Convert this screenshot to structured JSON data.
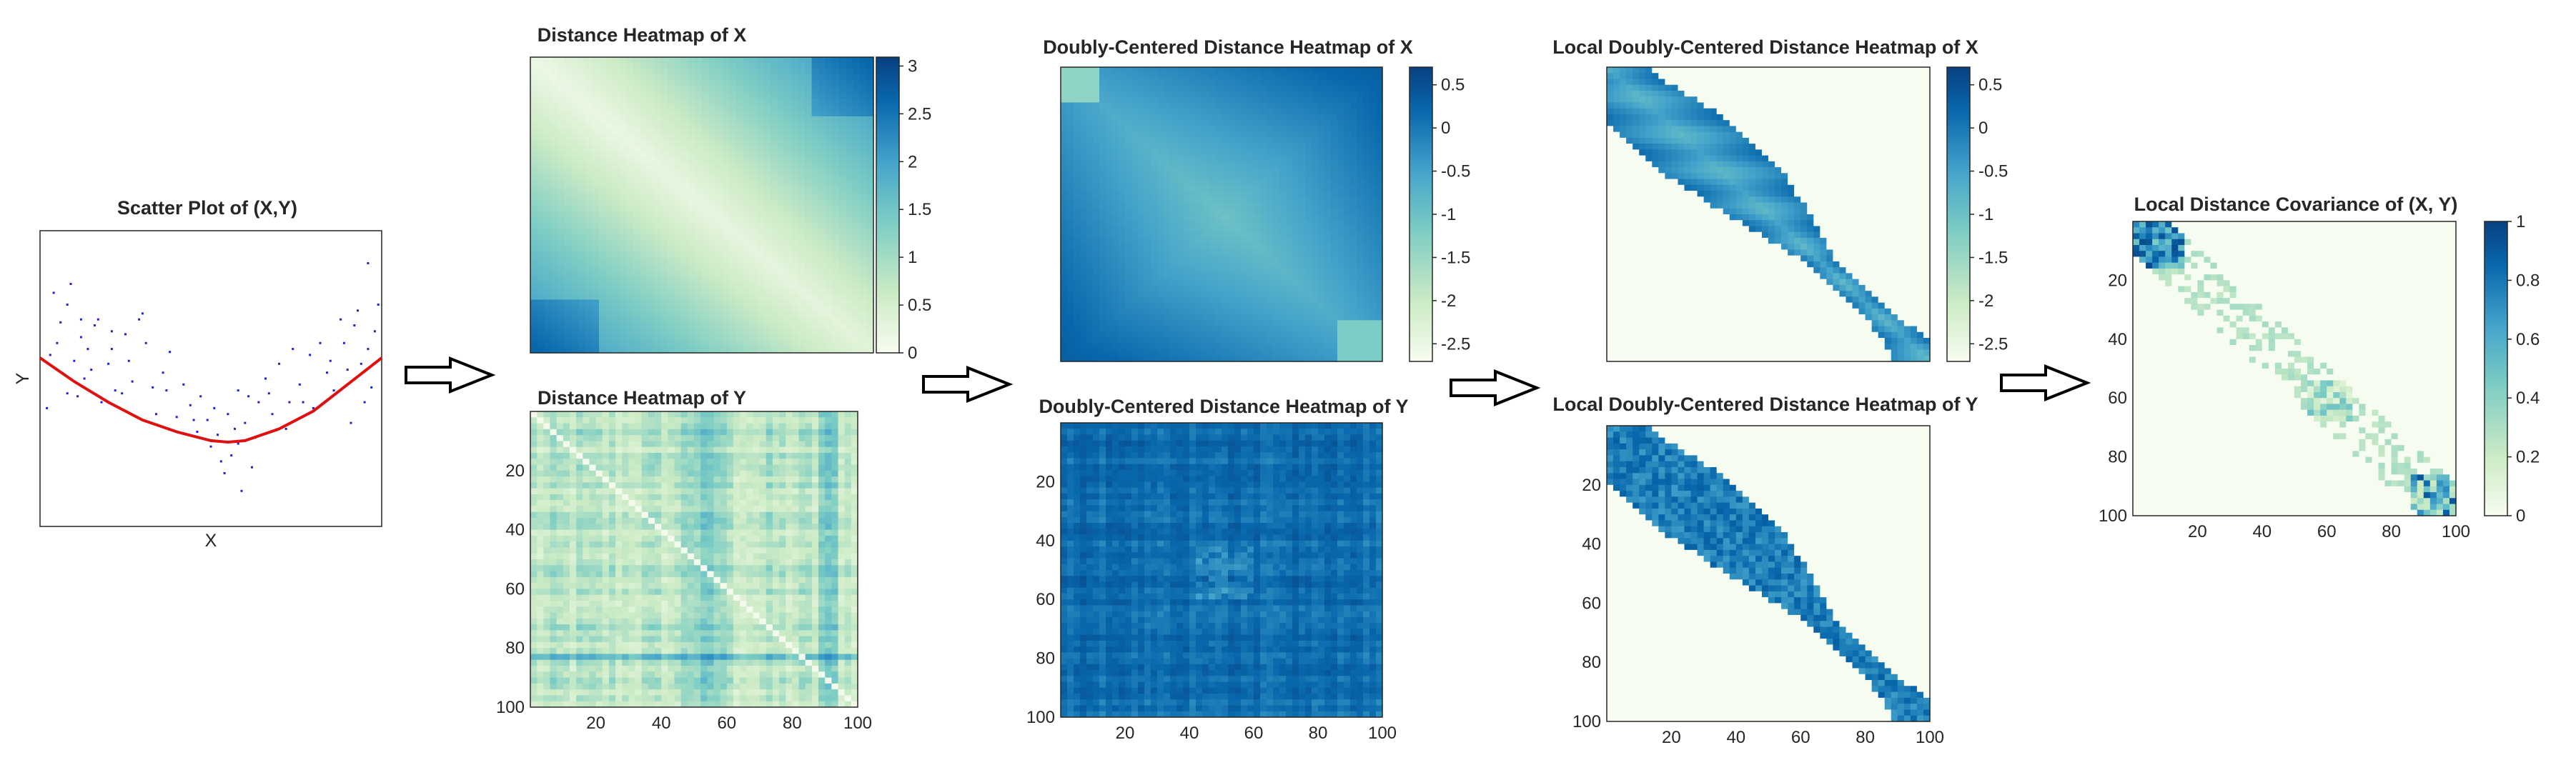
{
  "panels": {
    "scatter": {
      "title": "Scatter Plot of (X,Y)",
      "xlabel": "X",
      "ylabel": "Y"
    },
    "dist_x": {
      "title": "Distance Heatmap of X"
    },
    "dist_y": {
      "title": "Distance Heatmap of Y"
    },
    "dc_x": {
      "title": "Doubly-Centered Distance Heatmap of X"
    },
    "dc_y": {
      "title": "Doubly-Centered Distance Heatmap of Y"
    },
    "ldc_x": {
      "title": "Local Doubly-Centered Distance Heatmap of X"
    },
    "ldc_y": {
      "title": "Local Doubly-Centered Distance Heatmap of Y"
    },
    "ldcov": {
      "title": "Local Distance Covariance of (X, Y)"
    }
  },
  "ticks": {
    "matrix": [
      "20",
      "40",
      "60",
      "80",
      "100"
    ],
    "cb_dist_x": [
      "0",
      "0.5",
      "1",
      "1.5",
      "2",
      "2.5",
      "3"
    ],
    "cb_dc_x": [
      "-2.5",
      "-2",
      "-1.5",
      "-1",
      "-0.5",
      "0",
      "0.5"
    ],
    "cb_ldc_x": [
      "-2.5",
      "-2",
      "-1.5",
      "-1",
      "-0.5",
      "0",
      "0.5"
    ],
    "cb_ldcov": [
      "0",
      "0.2",
      "0.4",
      "0.6",
      "0.8",
      "1"
    ]
  },
  "colors": {
    "scatter_points": "#2222cc",
    "fit_curve": "#e01010",
    "colormap": [
      "#f7fcf0",
      "#ccebc5",
      "#7bccc4",
      "#43a2ca",
      "#0868ac",
      "#084081"
    ]
  },
  "chart_data": [
    {
      "type": "scatter",
      "title": "Scatter Plot of (X,Y)",
      "xlabel": "X",
      "ylabel": "Y",
      "series": [
        {
          "points": [
            [
              0.02,
              0.4
            ],
            [
              0.03,
              0.58
            ],
            [
              0.04,
              0.79
            ],
            [
              0.05,
              0.62
            ],
            [
              0.06,
              0.69
            ],
            [
              0.08,
              0.75
            ],
            [
              0.09,
              0.82
            ],
            [
              0.1,
              0.56
            ],
            [
              0.11,
              0.44
            ],
            [
              0.12,
              0.7
            ],
            [
              0.13,
              0.5
            ],
            [
              0.14,
              0.6
            ],
            [
              0.15,
              0.53
            ],
            [
              0.16,
              0.68
            ],
            [
              0.17,
              0.7
            ],
            [
              0.18,
              0.42
            ],
            [
              0.2,
              0.55
            ],
            [
              0.21,
              0.6
            ],
            [
              0.22,
              0.46
            ],
            [
              0.24,
              0.45
            ],
            [
              0.25,
              0.65
            ],
            [
              0.27,
              0.49
            ],
            [
              0.29,
              0.7
            ],
            [
              0.3,
              0.72
            ],
            [
              0.31,
              0.62
            ],
            [
              0.33,
              0.47
            ],
            [
              0.34,
              0.38
            ],
            [
              0.36,
              0.52
            ],
            [
              0.38,
              0.59
            ],
            [
              0.4,
              0.37
            ],
            [
              0.42,
              0.48
            ],
            [
              0.44,
              0.41
            ],
            [
              0.46,
              0.32
            ],
            [
              0.47,
              0.44
            ],
            [
              0.49,
              0.36
            ],
            [
              0.5,
              0.27
            ],
            [
              0.51,
              0.4
            ],
            [
              0.52,
              0.31
            ],
            [
              0.53,
              0.22
            ],
            [
              0.54,
              0.18
            ],
            [
              0.55,
              0.38
            ],
            [
              0.56,
              0.24
            ],
            [
              0.57,
              0.33
            ],
            [
              0.58,
              0.28
            ],
            [
              0.59,
              0.12
            ],
            [
              0.6,
              0.35
            ],
            [
              0.61,
              0.44
            ],
            [
              0.62,
              0.2
            ],
            [
              0.63,
              0.3
            ],
            [
              0.64,
              0.42
            ],
            [
              0.66,
              0.5
            ],
            [
              0.68,
              0.38
            ],
            [
              0.7,
              0.55
            ],
            [
              0.72,
              0.33
            ],
            [
              0.74,
              0.6
            ],
            [
              0.76,
              0.48
            ],
            [
              0.77,
              0.42
            ],
            [
              0.79,
              0.58
            ],
            [
              0.8,
              0.4
            ],
            [
              0.82,
              0.62
            ],
            [
              0.84,
              0.52
            ],
            [
              0.86,
              0.46
            ],
            [
              0.88,
              0.7
            ],
            [
              0.89,
              0.62
            ],
            [
              0.9,
              0.53
            ],
            [
              0.91,
              0.35
            ],
            [
              0.92,
              0.68
            ],
            [
              0.93,
              0.73
            ],
            [
              0.94,
              0.55
            ],
            [
              0.95,
              0.42
            ],
            [
              0.96,
              0.6
            ],
            [
              0.97,
              0.47
            ],
            [
              0.98,
              0.66
            ],
            [
              0.96,
              0.89
            ],
            [
              0.99,
              0.75
            ],
            [
              0.08,
              0.45
            ],
            [
              0.12,
              0.64
            ],
            [
              0.26,
              0.56
            ],
            [
              0.45,
              0.36
            ],
            [
              0.67,
              0.45
            ],
            [
              0.85,
              0.56
            ],
            [
              0.37,
              0.46
            ],
            [
              0.73,
              0.42
            ],
            [
              0.58,
              0.46
            ],
            [
              0.21,
              0.66
            ]
          ]
        }
      ],
      "fit_curve": [
        [
          0.0,
          0.57
        ],
        [
          0.1,
          0.49
        ],
        [
          0.2,
          0.42
        ],
        [
          0.3,
          0.36
        ],
        [
          0.4,
          0.32
        ],
        [
          0.5,
          0.29
        ],
        [
          0.55,
          0.285
        ],
        [
          0.6,
          0.29
        ],
        [
          0.7,
          0.33
        ],
        [
          0.8,
          0.39
        ],
        [
          0.9,
          0.48
        ],
        [
          1.0,
          0.57
        ]
      ]
    },
    {
      "type": "heatmap",
      "title": "Distance Heatmap of X",
      "rows": 100,
      "cols": 100,
      "clim": [
        0,
        3.1
      ]
    },
    {
      "type": "heatmap",
      "title": "Distance Heatmap of Y",
      "rows": 100,
      "cols": 100
    },
    {
      "type": "heatmap",
      "title": "Doubly-Centered Distance Heatmap of X",
      "rows": 100,
      "cols": 100,
      "clim": [
        -2.7,
        0.7
      ]
    },
    {
      "type": "heatmap",
      "title": "Doubly-Centered Distance Heatmap of Y",
      "rows": 100,
      "cols": 100
    },
    {
      "type": "heatmap",
      "title": "Local Doubly-Centered Distance Heatmap of X",
      "rows": 100,
      "cols": 100,
      "clim": [
        -2.7,
        0.7
      ]
    },
    {
      "type": "heatmap",
      "title": "Local Doubly-Centered Distance Heatmap of Y",
      "rows": 100,
      "cols": 100
    },
    {
      "type": "heatmap",
      "title": "Local Distance Covariance of (X, Y)",
      "rows": 100,
      "cols": 100,
      "clim": [
        0,
        1
      ]
    }
  ]
}
